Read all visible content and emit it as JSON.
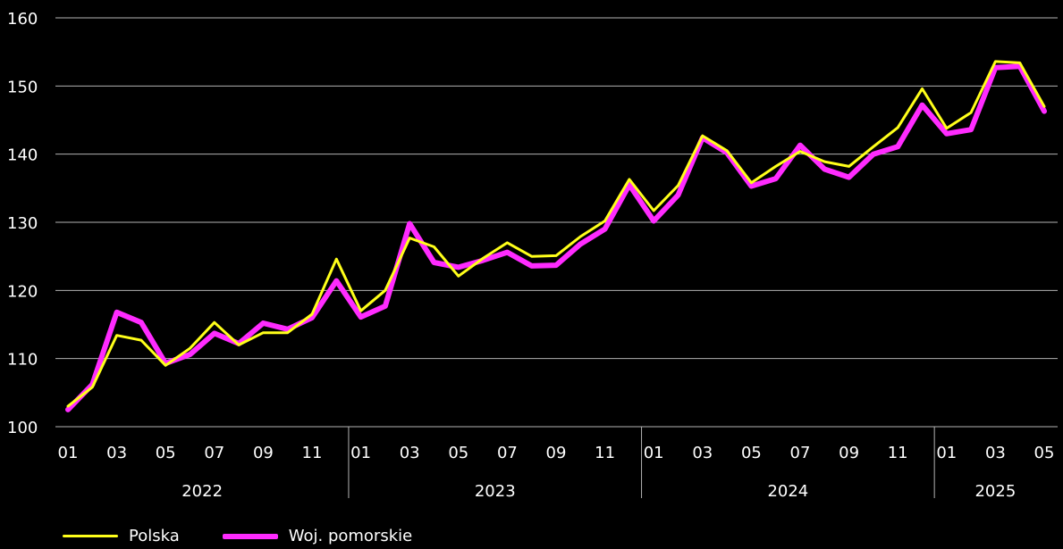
{
  "chart_data": {
    "type": "line",
    "ylim": [
      100,
      160
    ],
    "yticks": [
      100,
      110,
      120,
      130,
      140,
      150,
      160
    ],
    "grid": true,
    "legend_position": "bottom-left",
    "x_month_labels": [
      "01",
      "02",
      "03",
      "04",
      "05",
      "06",
      "07",
      "08",
      "09",
      "10",
      "11",
      "12",
      "01",
      "02",
      "03",
      "04",
      "05",
      "06",
      "07",
      "08",
      "09",
      "10",
      "11",
      "12",
      "01",
      "02",
      "03",
      "04",
      "05",
      "06",
      "07",
      "08",
      "09",
      "10",
      "11",
      "12",
      "01",
      "02",
      "03",
      "04",
      "05"
    ],
    "x_tick_labels_shown": [
      "01",
      "03",
      "05",
      "07",
      "09",
      "11",
      "01",
      "03",
      "05",
      "07",
      "09",
      "11",
      "01",
      "03",
      "05",
      "07",
      "09",
      "11",
      "01",
      "03",
      "05"
    ],
    "years": [
      {
        "label": "2022",
        "months": 12
      },
      {
        "label": "2023",
        "months": 12
      },
      {
        "label": "2024",
        "months": 12
      },
      {
        "label": "2025",
        "months": 5
      }
    ],
    "series": [
      {
        "name": "Polska",
        "color": "#ffff1a",
        "values": [
          103.0,
          105.8,
          113.4,
          112.7,
          109.0,
          111.5,
          115.3,
          112.0,
          113.8,
          113.8,
          116.5,
          124.6,
          117.0,
          120.0,
          127.7,
          126.4,
          122.1,
          124.7,
          127.0,
          125.0,
          125.1,
          127.9,
          130.2,
          136.3,
          131.7,
          135.4,
          142.7,
          140.5,
          135.8,
          138.2,
          140.4,
          138.9,
          138.2,
          141.1,
          143.9,
          149.6,
          143.8,
          146.1,
          153.6,
          153.4,
          147.0
        ]
      },
      {
        "name": "Woj. pomorskie",
        "color": "#ff2bff",
        "values": [
          102.5,
          106.2,
          116.8,
          115.3,
          109.3,
          110.6,
          113.7,
          112.2,
          115.2,
          114.3,
          116.0,
          121.4,
          116.1,
          117.7,
          129.8,
          124.1,
          123.4,
          124.4,
          125.6,
          123.6,
          123.7,
          126.8,
          129.0,
          135.5,
          130.2,
          134.0,
          142.4,
          140.2,
          135.3,
          136.4,
          141.3,
          137.8,
          136.6,
          140.0,
          141.1,
          147.2,
          143.0,
          143.6,
          152.7,
          152.9,
          146.3
        ]
      }
    ]
  },
  "legend": [
    {
      "label": "Polska",
      "color": "#ffff1a"
    },
    {
      "label": "Woj. pomorskie",
      "color": "#ff2bff"
    }
  ]
}
